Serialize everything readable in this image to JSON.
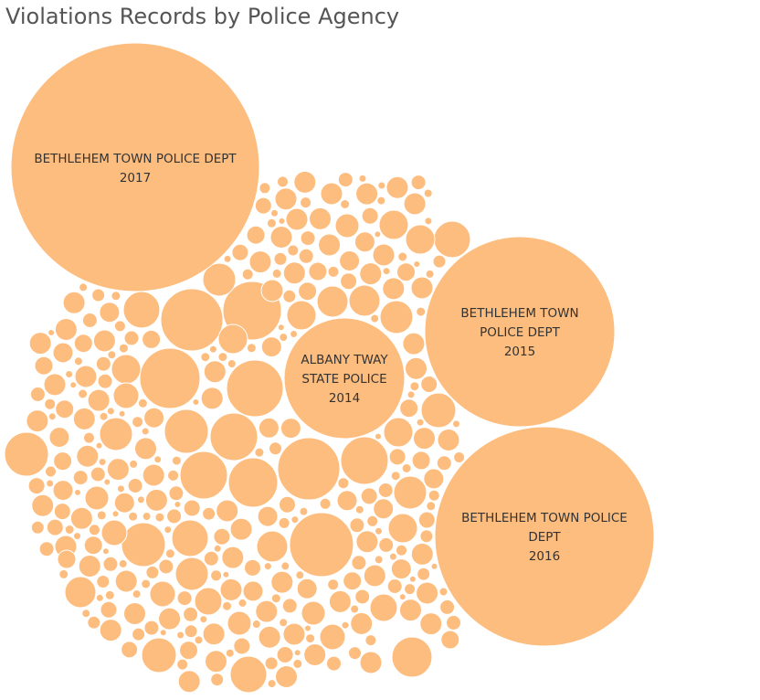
{
  "chart_data": {
    "type": "bubble",
    "title": "Violations Records by Police Agency",
    "bubble_color": "#FDBD7F",
    "label_color": "#333333",
    "labeled_bubbles": [
      {
        "agency": "BETHLEHEM TOWN POLICE DEPT",
        "year": "2017",
        "label_lines": [
          "BETHLEHEM TOWN POLICE DEPT"
        ]
      },
      {
        "agency": "BETHLEHEM TOWN POLICE DEPT",
        "year": "2016",
        "label_lines": [
          "BETHLEHEM TOWN POLICE",
          "DEPT"
        ]
      },
      {
        "agency": "BETHLEHEM TOWN POLICE DEPT",
        "year": "2015",
        "label_lines": [
          "BETHLEHEM TOWN",
          "POLICE DEPT"
        ]
      },
      {
        "agency": "ALBANY TWAY STATE POLICE",
        "year": "2014",
        "label_lines": [
          "ALBANY TWAY",
          "STATE POLICE"
        ]
      }
    ]
  }
}
